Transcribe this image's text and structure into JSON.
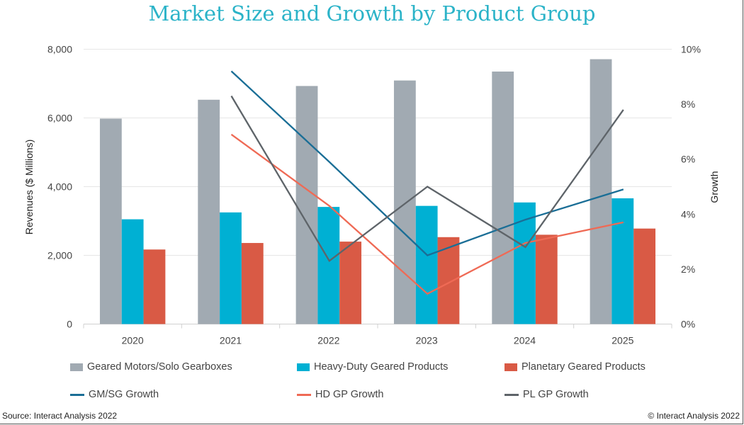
{
  "chart_data": {
    "type": "bar",
    "title": "Market Size and Growth by Product Group",
    "categories": [
      "2020",
      "2021",
      "2022",
      "2023",
      "2024",
      "2025"
    ],
    "ylabel": "Revenues ($ Millions)",
    "ylim": [
      0,
      8000
    ],
    "yticks": [
      "0",
      "2,000",
      "4,000",
      "6,000",
      "8,000"
    ],
    "y2label": "Growth",
    "y2lim": [
      0,
      10
    ],
    "y2ticks": [
      "0%",
      "2%",
      "4%",
      "6%",
      "8%",
      "10%"
    ],
    "grid": true,
    "legend": "bottom",
    "series": [
      {
        "name": "Geared Motors/Solo Gearboxes",
        "kind": "bar",
        "color": "#a1aab2",
        "values": [
          5980,
          6530,
          6930,
          7090,
          7350,
          7710
        ]
      },
      {
        "name": "Heavy-Duty Geared Products",
        "kind": "bar",
        "color": "#00b0d3",
        "values": [
          3050,
          3250,
          3410,
          3440,
          3540,
          3660
        ]
      },
      {
        "name": "Planetary Geared Products",
        "kind": "bar",
        "color": "#d95a45",
        "values": [
          2170,
          2360,
          2400,
          2530,
          2600,
          2780
        ]
      },
      {
        "name": "GM/SG Growth",
        "kind": "line",
        "axis": "right",
        "color": "#1a6e96",
        "values": [
          null,
          9.2,
          5.9,
          2.5,
          3.8,
          4.9
        ]
      },
      {
        "name": "HD GP Growth",
        "kind": "line",
        "axis": "right",
        "color": "#ef6a55",
        "values": [
          null,
          6.9,
          4.3,
          1.1,
          2.95,
          3.7
        ]
      },
      {
        "name": "PL GP Growth",
        "kind": "line",
        "axis": "right",
        "color": "#5e6469",
        "values": [
          null,
          8.3,
          2.3,
          5.0,
          2.8,
          7.8
        ]
      }
    ]
  },
  "footer": {
    "source": "Source: Interact Analysis 2022",
    "copyright": "© Interact Analysis 2022"
  }
}
